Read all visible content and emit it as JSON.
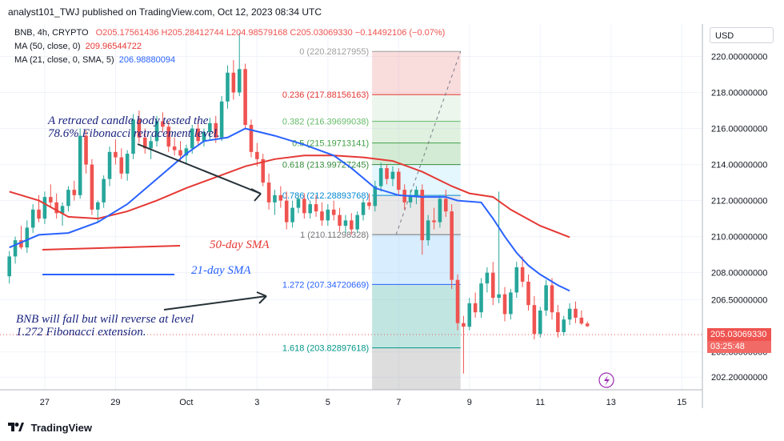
{
  "header": {
    "publisher": "analyst101_TWJ published on TradingView.com, Oct 12, 2023 08:34 UTC"
  },
  "legend": {
    "symbol": "BNB, 4h, CRYPTO",
    "ohlc": "O205.17561436  H205.28412744  L204.98579168  C205.03069330  −0.14492106 (−0.07%)",
    "ma50_label": "MA (50, close, 0)",
    "ma50_value": "209.96544722",
    "ma21_label": "MA (21, close, 0, SMA, 5)",
    "ma21_value": "206.98880094"
  },
  "currency_button": "USD",
  "last_price": "205.03069330",
  "countdown": "03:25:48",
  "annotations": {
    "retrace": [
      "A retraced candle body tested the",
      "78.6% Fibonacci retracement level."
    ],
    "sma50": "50-day SMA",
    "sma21": "21-day SMA",
    "forecast": [
      "BNB  will fall but will reverse at level",
      "1.272 Fibonacci extension."
    ]
  },
  "footer": {
    "brand": "TradingView"
  },
  "colors": {
    "up": "#26a69a",
    "down": "#ef5350",
    "ma50": "#e53935",
    "ma21": "#2962ff",
    "annotation": "#1a237e"
  },
  "chart_data": {
    "type": "candlestick",
    "symbol": "BNB",
    "timeframe": "4h",
    "y_ticks": [
      "220.00000000",
      "218.00000000",
      "216.00000000",
      "214.00000000",
      "212.00000000",
      "210.00000000",
      "208.00000000",
      "206.50000000",
      "203.60000000",
      "202.20000000"
    ],
    "y_tick_values": [
      220,
      218,
      216,
      214,
      212,
      210,
      208,
      206.5,
      203.6,
      202.2
    ],
    "x_ticks": [
      "27",
      "29",
      "Oct",
      "3",
      "5",
      "7",
      "9",
      "11",
      "13",
      "15"
    ],
    "x_tick_bars": [
      6,
      18,
      30,
      42,
      54,
      66,
      78,
      90,
      102,
      114
    ],
    "ylim": [
      201.5,
      221.8
    ],
    "xlim": [
      -0.5,
      117.5
    ],
    "fibonacci": {
      "x_range": [
        61.5,
        76.5
      ],
      "levels": [
        {
          "ratio": "0",
          "price": 220.28127955
        },
        {
          "ratio": "0.236",
          "price": 217.88156163
        },
        {
          "ratio": "0.382",
          "price": 216.39699038
        },
        {
          "ratio": "0.5",
          "price": 215.19713141
        },
        {
          "ratio": "0.618",
          "price": 213.99727245
        },
        {
          "ratio": "0.786",
          "price": 212.28893768
        },
        {
          "ratio": "1",
          "price": 210.11298328
        },
        {
          "ratio": "1.272",
          "price": 207.34720669
        },
        {
          "ratio": "1.618",
          "price": 203.82897618
        }
      ]
    },
    "candles": [
      [
        207.8,
        209.2,
        207.4,
        208.9
      ],
      [
        208.9,
        210.0,
        208.5,
        209.8
      ],
      [
        209.8,
        210.6,
        209.3,
        209.4
      ],
      [
        209.4,
        210.9,
        209.1,
        210.5
      ],
      [
        210.5,
        211.8,
        210.2,
        211.5
      ],
      [
        211.5,
        212.3,
        210.8,
        211.0
      ],
      [
        211.0,
        212.5,
        210.7,
        212.2
      ],
      [
        212.2,
        212.9,
        211.6,
        211.9
      ],
      [
        211.9,
        212.4,
        211.0,
        211.3
      ],
      [
        211.3,
        211.9,
        210.6,
        211.7
      ],
      [
        211.7,
        212.8,
        211.4,
        212.6
      ],
      [
        212.6,
        213.1,
        212.0,
        212.3
      ],
      [
        212.3,
        216.0,
        212.1,
        215.6
      ],
      [
        215.6,
        215.9,
        213.5,
        214.0
      ],
      [
        214.0,
        214.3,
        211.2,
        211.5
      ],
      [
        211.5,
        212.0,
        210.8,
        211.9
      ],
      [
        211.9,
        213.4,
        211.6,
        213.2
      ],
      [
        213.2,
        215.0,
        212.8,
        214.7
      ],
      [
        214.7,
        215.4,
        214.0,
        214.4
      ],
      [
        214.4,
        214.9,
        213.2,
        213.5
      ],
      [
        213.5,
        214.8,
        213.1,
        214.6
      ],
      [
        214.6,
        216.8,
        214.3,
        216.5
      ],
      [
        216.5,
        217.0,
        215.2,
        215.5
      ],
      [
        215.5,
        216.0,
        214.6,
        214.9
      ],
      [
        214.9,
        215.6,
        214.3,
        215.3
      ],
      [
        215.3,
        216.7,
        215.0,
        216.4
      ],
      [
        216.4,
        216.9,
        215.8,
        216.1
      ],
      [
        216.1,
        216.4,
        214.7,
        215.0
      ],
      [
        215.0,
        215.5,
        214.5,
        214.8
      ],
      [
        214.8,
        215.3,
        214.2,
        214.5
      ],
      [
        214.5,
        215.1,
        214.0,
        214.9
      ],
      [
        214.9,
        216.2,
        214.6,
        216.0
      ],
      [
        216.0,
        216.5,
        215.1,
        215.3
      ],
      [
        215.3,
        216.0,
        215.0,
        215.8
      ],
      [
        215.8,
        216.6,
        215.4,
        216.3
      ],
      [
        216.3,
        216.7,
        215.2,
        215.5
      ],
      [
        215.5,
        217.8,
        215.3,
        217.5
      ],
      [
        217.5,
        219.5,
        217.1,
        219.1
      ],
      [
        219.1,
        219.8,
        217.6,
        218.0
      ],
      [
        218.0,
        221.3,
        217.8,
        219.3
      ],
      [
        219.3,
        219.6,
        216.0,
        216.2
      ],
      [
        216.2,
        216.5,
        214.4,
        214.7
      ],
      [
        214.7,
        215.2,
        213.9,
        214.3
      ],
      [
        214.3,
        214.6,
        212.8,
        213.0
      ],
      [
        213.0,
        213.5,
        211.5,
        211.9
      ],
      [
        211.9,
        212.6,
        211.2,
        212.3
      ],
      [
        212.3,
        212.8,
        211.6,
        212.0
      ],
      [
        212.0,
        212.5,
        210.4,
        210.8
      ],
      [
        210.8,
        212.0,
        210.5,
        211.6
      ],
      [
        211.6,
        212.3,
        211.3,
        212.1
      ],
      [
        212.1,
        212.4,
        211.0,
        211.3
      ],
      [
        211.3,
        212.0,
        211.0,
        211.8
      ],
      [
        211.8,
        212.3,
        211.1,
        211.4
      ],
      [
        211.4,
        211.9,
        210.6,
        210.9
      ],
      [
        210.9,
        211.8,
        210.6,
        211.5
      ],
      [
        211.5,
        212.0,
        210.9,
        211.2
      ],
      [
        211.2,
        211.6,
        210.3,
        210.6
      ],
      [
        210.6,
        211.2,
        210.2,
        210.9
      ],
      [
        210.9,
        211.3,
        210.1,
        210.4
      ],
      [
        210.4,
        211.4,
        210.2,
        211.2
      ],
      [
        211.2,
        212.1,
        210.9,
        211.9
      ],
      [
        211.9,
        212.4,
        211.5,
        211.7
      ],
      [
        211.7,
        213.1,
        211.4,
        212.8
      ],
      [
        212.8,
        214.1,
        212.5,
        213.8
      ],
      [
        213.8,
        214.0,
        212.9,
        213.2
      ],
      [
        213.2,
        213.9,
        212.8,
        213.6
      ],
      [
        213.6,
        213.8,
        212.3,
        212.6
      ],
      [
        212.6,
        212.9,
        211.5,
        211.9
      ],
      [
        211.9,
        212.6,
        211.6,
        212.3
      ],
      [
        212.3,
        212.8,
        211.8,
        212.6
      ],
      [
        212.6,
        212.9,
        209.0,
        209.8
      ],
      [
        209.8,
        211.2,
        209.5,
        210.9
      ],
      [
        210.9,
        211.6,
        210.4,
        210.8
      ],
      [
        210.8,
        212.3,
        210.5,
        212.1
      ],
      [
        212.1,
        212.6,
        211.1,
        211.4
      ],
      [
        211.4,
        211.8,
        207.1,
        207.6
      ],
      [
        207.6,
        207.9,
        204.8,
        205.2
      ],
      [
        205.2,
        205.6,
        202.4,
        205.0
      ],
      [
        205.0,
        206.6,
        204.8,
        206.3
      ],
      [
        206.3,
        206.9,
        205.5,
        205.8
      ],
      [
        205.8,
        207.7,
        205.5,
        207.4
      ],
      [
        207.4,
        208.3,
        206.9,
        208.0
      ],
      [
        208.0,
        208.6,
        206.2,
        206.6
      ],
      [
        206.6,
        212.5,
        206.3,
        206.8
      ],
      [
        206.8,
        207.2,
        205.3,
        205.7
      ],
      [
        205.7,
        207.1,
        205.4,
        206.9
      ],
      [
        206.9,
        208.6,
        206.6,
        208.3
      ],
      [
        208.3,
        208.9,
        207.2,
        207.5
      ],
      [
        207.5,
        207.9,
        205.9,
        206.2
      ],
      [
        206.2,
        206.7,
        204.3,
        204.6
      ],
      [
        204.6,
        206.1,
        204.4,
        205.9
      ],
      [
        205.9,
        207.6,
        205.6,
        207.3
      ],
      [
        207.3,
        207.7,
        205.4,
        205.8
      ],
      [
        205.8,
        206.2,
        204.4,
        204.7
      ],
      [
        204.7,
        205.6,
        204.5,
        205.4
      ],
      [
        205.4,
        206.3,
        205.1,
        206.0
      ],
      [
        206.0,
        206.4,
        205.2,
        205.5
      ],
      [
        205.5,
        205.9,
        205.1,
        205.17561436
      ],
      [
        205.17561436,
        205.28412744,
        204.98579168,
        205.0306933
      ]
    ],
    "ma50": [
      [
        0,
        212.5
      ],
      [
        5,
        212.0
      ],
      [
        10,
        211.1
      ],
      [
        15,
        211.0
      ],
      [
        20,
        211.4
      ],
      [
        25,
        212.0
      ],
      [
        30,
        212.7
      ],
      [
        35,
        213.3
      ],
      [
        40,
        213.9
      ],
      [
        45,
        214.3
      ],
      [
        50,
        214.5
      ],
      [
        55,
        214.5
      ],
      [
        60,
        214.4
      ],
      [
        65,
        214.2
      ],
      [
        70,
        213.6
      ],
      [
        75,
        212.8
      ],
      [
        78,
        212.4
      ],
      [
        82,
        212.2
      ],
      [
        85,
        211.5
      ],
      [
        90,
        210.6
      ],
      [
        95,
        209.96544722
      ]
    ],
    "ma21": [
      [
        0,
        209.4
      ],
      [
        5,
        210.1
      ],
      [
        10,
        210.2
      ],
      [
        15,
        210.8
      ],
      [
        20,
        211.8
      ],
      [
        25,
        213.2
      ],
      [
        30,
        214.6
      ],
      [
        33,
        215.3
      ],
      [
        37,
        215.5
      ],
      [
        40,
        216.0
      ],
      [
        45,
        215.6
      ],
      [
        50,
        215.1
      ],
      [
        55,
        214.5
      ],
      [
        58,
        213.8
      ],
      [
        62,
        212.7
      ],
      [
        66,
        212.3
      ],
      [
        70,
        212.2
      ],
      [
        74,
        212.2
      ],
      [
        76,
        212.0
      ],
      [
        80,
        211.9
      ],
      [
        82,
        211.0
      ],
      [
        84,
        210.0
      ],
      [
        86,
        209.1
      ],
      [
        88,
        208.4
      ],
      [
        90,
        207.9
      ],
      [
        93,
        207.3
      ],
      [
        95,
        206.98880094
      ]
    ]
  }
}
